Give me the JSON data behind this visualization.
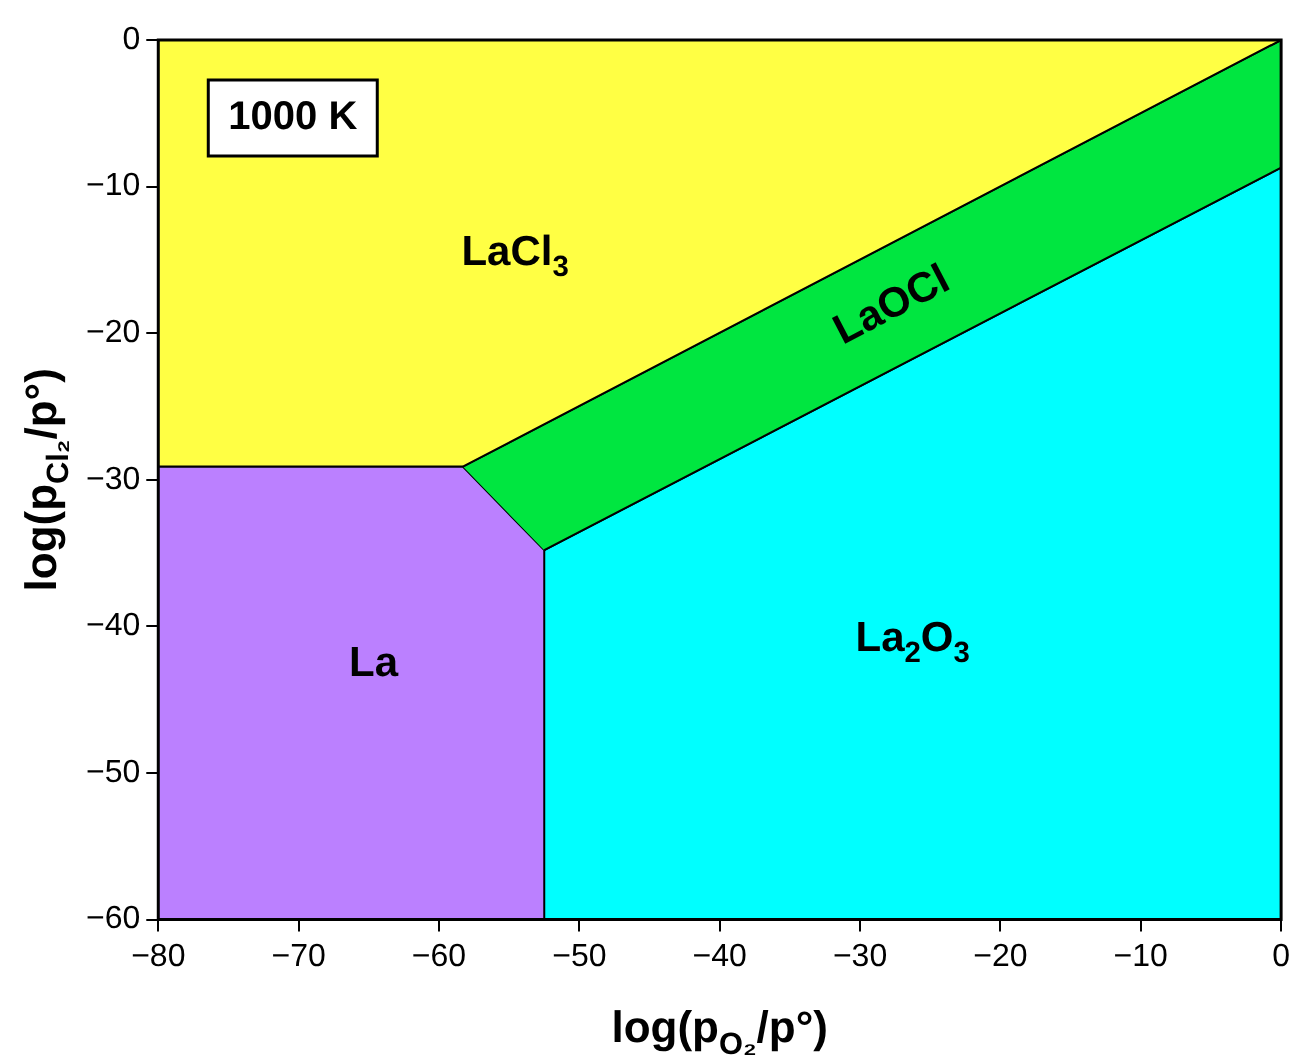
{
  "chart_data": {
    "type": "area",
    "xlabel": "log(p$_{O₂}$/p°)",
    "ylabel": "log(p$_{Cl₂}$/p°)",
    "series": [
      {
        "name": "LaCl$_{3}$",
        "color": "#ffff44",
        "x": [
          -80,
          0,
          -58.3,
          -80
        ],
        "values": [
          0,
          0,
          -29.1,
          -29.1
        ]
      },
      {
        "name": "LaOCl",
        "color": "#00e640",
        "x": [
          -58.3,
          0,
          0,
          -52.5
        ],
        "values": [
          -29.1,
          0,
          -8.7,
          -34.8
        ]
      },
      {
        "name": "La",
        "color": "#bb80ff",
        "x": [
          -80,
          -58.3,
          -52.5,
          -52.5,
          -80
        ],
        "values": [
          -29.1,
          -29.1,
          -34.8,
          -60,
          -60
        ]
      },
      {
        "name": "La$_{2}$O$_{3}$",
        "color": "#00ffff",
        "x": [
          -52.5,
          0,
          0,
          -52.5
        ],
        "values": [
          -34.8,
          -8.7,
          -60,
          -60
        ]
      }
    ],
    "annotations": [
      "1000 K"
    ],
    "xlim": [
      -80,
      0
    ],
    "xticks": [
      -80,
      -70,
      -60,
      -50,
      -40,
      -30,
      -20,
      -10,
      0
    ],
    "ylim": [
      -60,
      0
    ],
    "yticks": [
      -60,
      -50,
      -40,
      -30,
      -20,
      -10,
      0
    ],
    "legend": false
  }
}
